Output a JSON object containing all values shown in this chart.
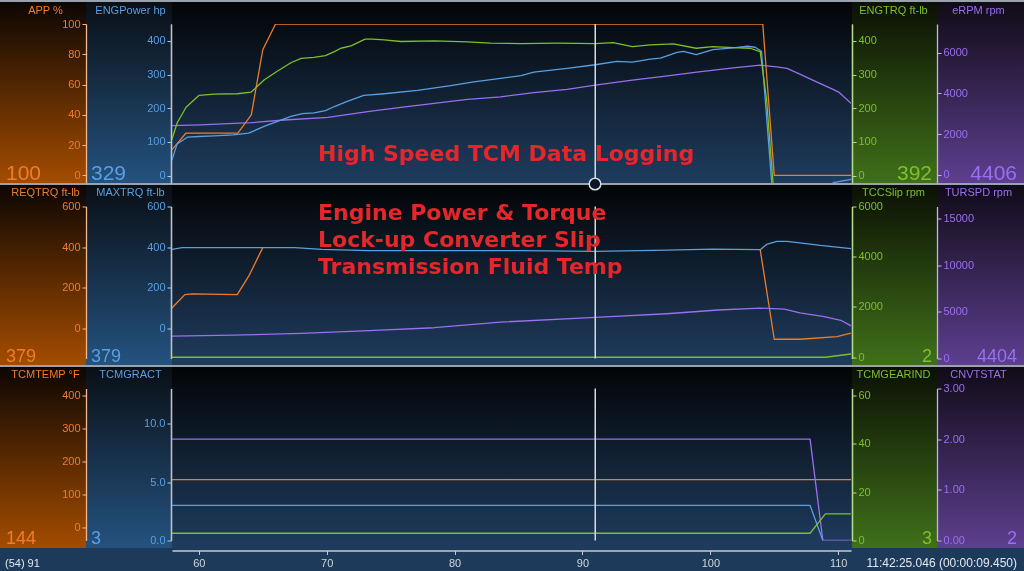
{
  "chart_data": [
    {
      "type": "line",
      "title": "High Speed TCM Data Logging",
      "ylabel": "ENGPower hp",
      "y2label": "ENGTRQ ft-lb",
      "xlim": [
        57.9,
        111.0
      ],
      "tick_labels": "y",
      "ylim": [
        -22,
        450
      ],
      "yticks": [
        0,
        100,
        200,
        300,
        400
      ],
      "y2lim": [
        -22,
        450
      ],
      "y2ticks": [
        0,
        100,
        200,
        300,
        400
      ],
      "ref_lines": [
        {
          "axis": "x",
          "value": 91,
          "color": "#d9dde2"
        }
      ],
      "annotations": [
        "329",
        "392"
      ],
      "series": [
        {
          "color": "#5a9fe0",
          "x": [
            57.9,
            58.3,
            59.1,
            60.0,
            61.2,
            62.7,
            63.9,
            65.1,
            66.1,
            67.2,
            68.1,
            69.0,
            69.9,
            70.6,
            71.6,
            72.9,
            74.5,
            77.1,
            79.7,
            81.5,
            83.3,
            85.2,
            86.2,
            88.8,
            91.0,
            92.7,
            93.9,
            95.3,
            96.1,
            97.4,
            97.9,
            98.9,
            100.2,
            101.8,
            102.9,
            103.5,
            104.0,
            104.8,
            107.0,
            109.6,
            111.0
          ],
          "values": [
            47,
            94,
            114,
            116,
            118,
            121,
            126,
            146,
            160,
            176,
            184,
            186,
            193,
            205,
            220,
            238,
            243,
            253,
            267,
            278,
            287,
            297,
            307,
            318,
            329,
            339,
            337,
            346,
            349,
            366,
            369,
            359,
            374,
            379,
            384,
            381,
            369,
            -22,
            null,
            -21,
            -11
          ]
        },
        {
          "color": "#7cc02a",
          "axis": "y2",
          "x": [
            57.9,
            58.3,
            59.0,
            60.0,
            61.2,
            63.0,
            64.1,
            65.1,
            66.1,
            67.2,
            68.0,
            69.0,
            69.9,
            70.6,
            71.1,
            71.9,
            73.0,
            73.6,
            74.5,
            75.8,
            78.4,
            81.0,
            82.8,
            85.2,
            88.0,
            91.0,
            92.4,
            93.9,
            95.3,
            97.1,
            98.9,
            100.2,
            101.8,
            103.1,
            103.9,
            104.4,
            104.9
          ],
          "values": [
            108,
            156,
            203,
            238,
            242,
            243,
            248,
            284,
            309,
            335,
            348,
            351,
            356,
            368,
            378,
            385,
            405,
            405,
            403,
            398,
            400,
            397,
            393,
            392,
            393,
            392,
            395,
            383,
            388,
            391,
            378,
            383,
            380,
            378,
            368,
            225,
            -22
          ]
        }
      ]
    },
    {
      "type": "line",
      "ylabel": "APP %",
      "y2label": "eRPM rpm",
      "xlim": [
        57.9,
        111.0
      ],
      "tick_labels": "y",
      "ylim": [
        -5,
        100
      ],
      "yticks": [
        0,
        20,
        40,
        60,
        80,
        100
      ],
      "y2lim": [
        -400,
        7400
      ],
      "y2ticks": [
        0,
        2000,
        4000,
        6000
      ],
      "annotations": [
        "100",
        "4406"
      ],
      "series": [
        {
          "color": "#ee7d2b",
          "x": [
            57.9,
            59.0,
            63.05,
            64.1,
            65.0,
            66.0,
            104.1,
            105.0,
            111.0
          ],
          "values": [
            17,
            28,
            28,
            40,
            83,
            100,
            100,
            0,
            0
          ]
        },
        {
          "color": "#9a6ff0",
          "axis": "y2",
          "x": [
            57.9,
            60.1,
            64.1,
            66.7,
            70.1,
            73.2,
            75.8,
            78.4,
            81.0,
            83.6,
            86.2,
            88.8,
            91.0,
            93.9,
            96.5,
            99.1,
            101.8,
            103.9,
            105.2,
            106.0,
            107.0,
            108.3,
            109.6,
            110.1,
            111.0
          ],
          "values": [
            2410,
            2450,
            2560,
            2690,
            2820,
            3100,
            3310,
            3510,
            3700,
            3830,
            4030,
            4190,
            4400,
            4650,
            4840,
            5050,
            5250,
            5380,
            5300,
            5220,
            4940,
            4560,
            4190,
            4030,
            3510
          ]
        }
      ]
    },
    {
      "type": "line",
      "title": "Engine Power & Torque\nLock-up Converter Slip\nTransmission Fluid Temp",
      "ylabel": "MAXTRQ ft-lb",
      "y2label": "TCCSlip rpm",
      "xlim": [
        57.9,
        111.0
      ],
      "tick_labels": "y",
      "ylim": [
        -150,
        600
      ],
      "yticks": [
        0,
        200,
        400,
        600
      ],
      "y2lim": [
        -50,
        6000
      ],
      "y2ticks": [
        0,
        2000,
        4000,
        6000
      ],
      "ref_lines": [
        {
          "axis": "x",
          "value": 91,
          "color": "#d9dde2"
        }
      ],
      "annotations": [
        "379",
        "2"
      ],
      "series": [
        {
          "color": "#5a9fe0",
          "x": [
            57.9,
            58.7,
            67.5,
            69.6,
            73.3,
            85.2,
            91.0,
            96.6,
            100.2,
            103.9,
            104.4,
            105.2,
            106.0,
            107.0,
            108.6,
            111.0
          ],
          "values": [
            388,
            397,
            397,
            388,
            382,
            382,
            379,
            385,
            390,
            387,
            413,
            428,
            428,
            421,
            408,
            392
          ]
        },
        {
          "color": "#7cc02a",
          "axis": "y2",
          "x": [
            57.9,
            109.0,
            111.0
          ],
          "values": [
            0,
            0,
            130
          ]
        }
      ]
    },
    {
      "type": "line",
      "ylabel": "REQTRQ ft-lb",
      "y2label": "TURSPD rpm",
      "xlim": [
        57.9,
        111.0
      ],
      "tick_labels": "y",
      "ylim": [
        -150,
        600
      ],
      "yticks": [
        0,
        200,
        400,
        600
      ],
      "y2lim": [
        0,
        16300
      ],
      "y2ticks": [
        0,
        5000,
        10000,
        15000
      ],
      "annotations": [
        "379",
        "4404"
      ],
      "series": [
        {
          "color": "#ee7d2b",
          "x": [
            57.9,
            58.9,
            59.5,
            63.0,
            63.9,
            65.0,
            66.0,
            103.9,
            105.0,
            107.0,
            109.9,
            111.0
          ],
          "values": [
            99,
            165,
            169,
            165,
            256,
            397,
            null,
            387,
            -55,
            -55,
            -42,
            -25
          ]
        },
        {
          "color": "#9a6ff0",
          "axis": "y2",
          "x": [
            57.9,
            62.7,
            68.0,
            73.3,
            78.4,
            83.6,
            91.0,
            96.6,
            100.6,
            103.9,
            105.8,
            107.0,
            108.9,
            110.2,
            111.0
          ],
          "values": [
            2400,
            2500,
            2700,
            3000,
            3300,
            3900,
            4400,
            4800,
            5200,
            5400,
            5300,
            4900,
            4500,
            4100,
            3500
          ]
        }
      ]
    },
    {
      "type": "line",
      "ylabel": "TCMGRACT",
      "y2label": "TCMGEARIND",
      "xlim": [
        57.9,
        111.0
      ],
      "xticks": [
        60,
        70,
        80,
        90,
        100,
        110
      ],
      "ylim": [
        0,
        13
      ],
      "yticks": [
        {
          "value": 0,
          "label": "0.0"
        },
        {
          "value": 5,
          "label": "5.0"
        },
        {
          "value": 10,
          "label": "10.0"
        }
      ],
      "y2lim": [
        0,
        63
      ],
      "y2ticks": [
        0,
        20,
        40,
        60
      ],
      "ref_lines": [
        {
          "axis": "x",
          "value": 91,
          "color": "#d9dde2"
        }
      ],
      "annotations": [
        "3",
        "3",
        "(54) 91",
        "11:42:25.046 (00:00:09.450)"
      ],
      "series": [
        {
          "color": "#5a9fe0",
          "x": [
            57.9,
            107.8,
            108.8
          ],
          "values": [
            3,
            3,
            0
          ]
        },
        {
          "color": "#7cc02a",
          "axis": "y2",
          "x": [
            57.9,
            107.8,
            109.0,
            111.0
          ],
          "values": [
            3,
            3,
            11,
            11
          ]
        }
      ]
    },
    {
      "type": "line",
      "ylabel": "TCMTEMP °F",
      "y2label": "CNVTSTAT",
      "xlim": [
        57.9,
        111.0
      ],
      "tick_labels": "y",
      "ylim": [
        -40,
        420
      ],
      "yticks": [
        0,
        100,
        200,
        300,
        400
      ],
      "y2lim": [
        0,
        3
      ],
      "y2ticks": [
        {
          "value": 0,
          "label": "0.00"
        },
        {
          "value": 1,
          "label": "1.00"
        },
        {
          "value": 2,
          "label": "2.00"
        },
        {
          "value": 3,
          "label": "3.00"
        }
      ],
      "annotations": [
        "144",
        "2"
      ],
      "series": [
        {
          "color": "#ee7d2b",
          "x": [
            57.9,
            111.0
          ],
          "values": [
            144,
            144
          ]
        },
        {
          "color": "#9a6ff0",
          "axis": "y2",
          "x": [
            57.9,
            107.8,
            108.8,
            111.0
          ],
          "values": [
            2,
            2,
            0,
            0
          ]
        }
      ]
    }
  ]
}
